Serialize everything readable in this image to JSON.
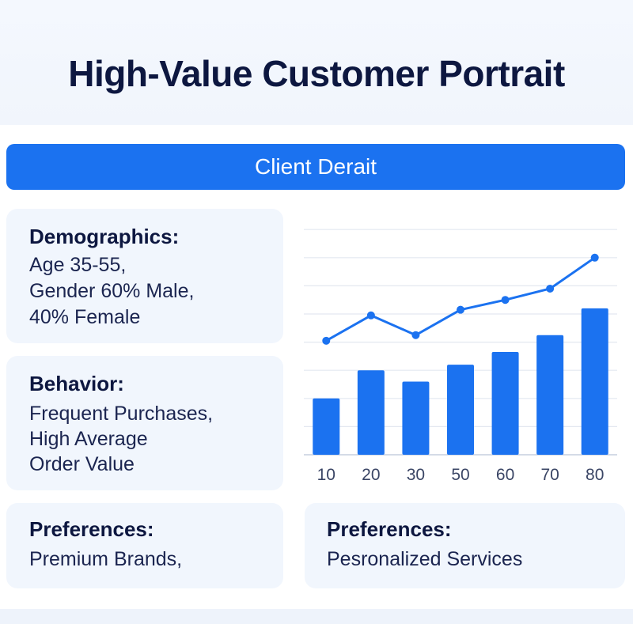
{
  "header": {
    "title": "High-Value Customer Portrait"
  },
  "banner": {
    "label": "Client Derait"
  },
  "cards": {
    "demographics": {
      "title": "Demographics:",
      "lines": [
        "Age 35-55,",
        "Gender 60% Male,",
        "40% Female"
      ]
    },
    "behavior": {
      "title": "Behavior:",
      "lines": [
        "Frequent Purchases,",
        "High Average",
        "Order Value"
      ]
    },
    "preferences_1": {
      "title": "Preferences:",
      "lines": [
        "Premium Brands,"
      ]
    },
    "preferences_2": {
      "title": "Preferences:",
      "lines": [
        "Pesronalized Services"
      ]
    }
  },
  "colors": {
    "accent": "#1b72f0",
    "bar": "#1b72f0",
    "line": "#1b72f0",
    "title_text": "#0d1740",
    "card_bg": "#f1f6fd"
  },
  "chart_data": {
    "type": "bar",
    "categories": [
      "10",
      "20",
      "30",
      "50",
      "60",
      "70",
      "80"
    ],
    "series": [
      {
        "type": "bar",
        "values": [
          40,
          60,
          52,
          64,
          73,
          85,
          104
        ]
      },
      {
        "type": "line",
        "values": [
          81,
          99,
          85,
          103,
          110,
          118,
          140
        ]
      }
    ],
    "ylim": [
      0,
      160
    ],
    "grid": true,
    "legend": "none",
    "title": "",
    "xlabel": "",
    "ylabel": ""
  }
}
